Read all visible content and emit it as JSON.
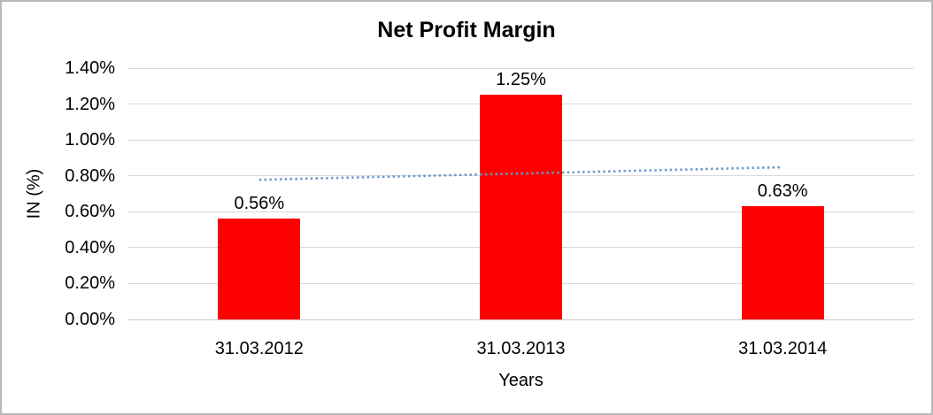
{
  "chart_data": {
    "type": "bar",
    "title": "Net Profit Margin",
    "categories": [
      "31.03.2012",
      "31.03.2013",
      "31.03.2014"
    ],
    "values": [
      0.56,
      1.25,
      0.63
    ],
    "data_labels": [
      "0.56%",
      "1.25%",
      "0.63%"
    ],
    "xlabel": "Years",
    "ylabel": "IN (%)",
    "ylim": [
      0,
      1.4
    ],
    "ytick_step": 0.2,
    "ytick_labels": [
      "0.00%",
      "0.20%",
      "0.40%",
      "0.60%",
      "0.80%",
      "1.00%",
      "1.20%",
      "1.40%"
    ],
    "grid": true,
    "legend": "none",
    "colors": {
      "bar": "#FF0000",
      "gridline": "#D9D9D9",
      "axis_line": "#C9C9C9",
      "text": "#000000",
      "trendline": "#6699CC",
      "background": "#FFFFFF",
      "frame_border": "#B9B9B9"
    },
    "trendline": {
      "type": "linear",
      "style": "dotted",
      "start_value": 0.778,
      "end_value": 0.848
    }
  }
}
